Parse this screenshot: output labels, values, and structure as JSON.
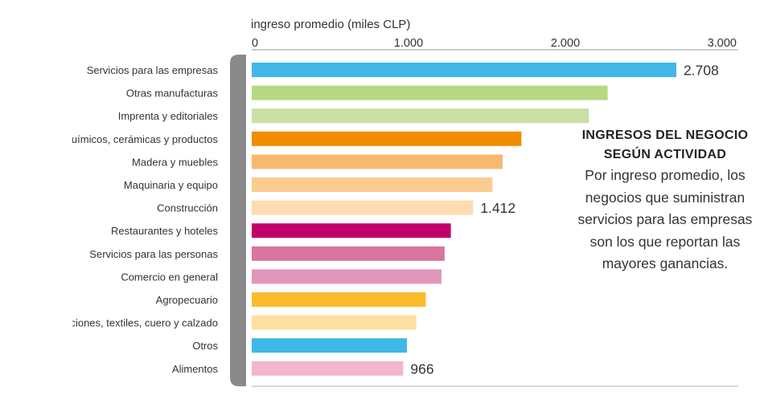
{
  "chart_data": {
    "type": "bar",
    "orientation": "horizontal",
    "axis_label": "ingreso promedio (miles CLP)",
    "xlim": [
      0,
      3000
    ],
    "ticks": [
      {
        "value": 0,
        "label": "0"
      },
      {
        "value": 1000,
        "label": "1.000"
      },
      {
        "value": 2000,
        "label": "2.000"
      },
      {
        "value": 3000,
        "label": "3.000"
      }
    ],
    "categories": [
      "Servicios para las empresas",
      "Otras manufacturas",
      "Imprenta y editoriales",
      "Químicos, cerámicas y productos",
      "Madera y muebles",
      "Maquinaria y equipo",
      "Construcción",
      "Restaurantes y hoteles",
      "Servicios para las personas",
      "Comercio en general",
      "Agropecuario",
      "Confecciones, textiles, cuero y calzado",
      "Otros",
      "Alimentos"
    ],
    "values": [
      2708,
      2270,
      2150,
      1720,
      1600,
      1535,
      1412,
      1270,
      1230,
      1210,
      1110,
      1050,
      990,
      966
    ],
    "data_labels": [
      "2.708",
      "",
      "",
      "",
      "",
      "",
      "1.412",
      "",
      "",
      "",
      "",
      "",
      "",
      "966"
    ],
    "colors": [
      "#3fb8e8",
      "#b6d884",
      "#c9e0a2",
      "#f08c00",
      "#f8b971",
      "#fbcc90",
      "#fcdcb0",
      "#c3006b",
      "#d9759f",
      "#e197b9",
      "#fbbb2c",
      "#fde0a0",
      "#3fb8e8",
      "#f1b6cc"
    ],
    "grid": false
  },
  "annotation": {
    "title": "INGRESOS DEL NEGOCIO SEGÚN ACTIVIDAD",
    "body": "Por ingreso promedio, los negocios que suministran servicios para las empresas son los que reportan las mayores ganancias."
  },
  "style": {
    "bracket_color": "#8a8a8c",
    "axis_color": "#9a9a9a",
    "text_color": "#333333"
  }
}
